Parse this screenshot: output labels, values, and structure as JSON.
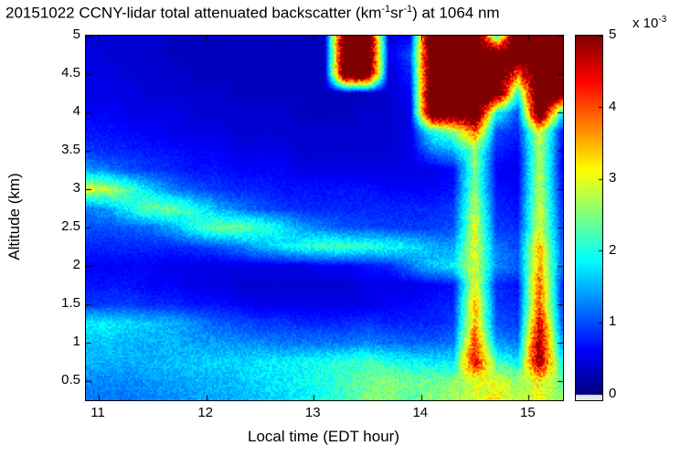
{
  "title": {
    "part1": "20151022 CCNY-lidar total attenuated backscatter (km",
    "sup1": "-1",
    "part2": "sr",
    "sup2": "-1",
    "part3": ") at 1064 nm"
  },
  "colorbar": {
    "scale_base": "x 10",
    "scale_exp": "-3",
    "tick_labels": [
      "0",
      "1",
      "2",
      "3",
      "4",
      "5"
    ],
    "tick_values": [
      0,
      1,
      2,
      3,
      4,
      5
    ]
  },
  "axes": {
    "xlabel": "Local time (EDT hour)",
    "ylabel": "Altitude (km)",
    "x_tick_labels": [
      "11",
      "12",
      "13",
      "14",
      "15"
    ],
    "x_tick_values": [
      11,
      12,
      13,
      14,
      15
    ],
    "y_tick_labels": [
      "0.5",
      "1",
      "1.5",
      "2",
      "2.5",
      "3",
      "3.5",
      "4",
      "4.5",
      "5"
    ],
    "y_tick_values": [
      0.5,
      1,
      1.5,
      2,
      2.5,
      3,
      3.5,
      4,
      4.5,
      5
    ],
    "x_range": [
      10.88,
      15.32
    ],
    "y_range": [
      0.25,
      5.0
    ]
  },
  "colors": {
    "background": "#ffffff",
    "axis": "#000000",
    "colormap_min": "#00008f",
    "colormap_max": "#7f0000",
    "below_range": "#e4e4f2"
  },
  "chart_data": {
    "type": "heatmap",
    "title": "20151022 CCNY-lidar total attenuated backscatter (km^-1 sr^-1) at 1064 nm",
    "xlabel": "Local time (EDT hour)",
    "ylabel": "Altitude (km)",
    "colormap": "jet",
    "clim": [
      0,
      5
    ],
    "value_scale": "1e-3",
    "units": "km^-1 sr^-1",
    "x_times": [
      10.9,
      11.1,
      11.3,
      11.5,
      11.7,
      11.9,
      12.1,
      12.3,
      12.5,
      12.7,
      12.9,
      13.1,
      13.3,
      13.5,
      13.7,
      13.9,
      14.1,
      14.3,
      14.5,
      14.7,
      14.9,
      15.1,
      15.3
    ],
    "altitudes": [
      0.25,
      0.5,
      0.75,
      1.0,
      1.25,
      1.5,
      1.75,
      2.0,
      2.25,
      2.5,
      2.75,
      3.0,
      3.25,
      3.5,
      3.75,
      4.0,
      4.25,
      4.5,
      4.75,
      5.0
    ],
    "values": [
      [
        1.2,
        1.2,
        1.2,
        1.3,
        1.3,
        1.4,
        1.5,
        1.5,
        1.6,
        1.7,
        1.8,
        2.0,
        2.2,
        2.5,
        2.5,
        2.3,
        2.5,
        2.6,
        2.8,
        3.2,
        2.8,
        3.0,
        2.6
      ],
      [
        1.3,
        1.3,
        1.3,
        1.4,
        1.4,
        1.5,
        1.5,
        1.6,
        1.7,
        1.8,
        1.9,
        2.0,
        2.2,
        2.4,
        2.6,
        2.4,
        2.4,
        2.5,
        3.0,
        3.0,
        2.6,
        3.2,
        2.4
      ],
      [
        1.5,
        1.5,
        1.5,
        1.5,
        1.6,
        1.6,
        1.7,
        1.7,
        1.8,
        1.8,
        1.9,
        2.0,
        2.1,
        2.2,
        2.0,
        1.9,
        1.8,
        1.8,
        4.5,
        2.2,
        1.8,
        5.0,
        2.0
      ],
      [
        1.6,
        1.6,
        1.5,
        1.5,
        1.5,
        1.4,
        1.4,
        1.3,
        1.3,
        1.2,
        1.2,
        1.2,
        1.2,
        1.3,
        1.2,
        1.1,
        1.1,
        1.2,
        4.0,
        1.4,
        1.2,
        5.0,
        1.5
      ],
      [
        1.8,
        1.8,
        1.7,
        1.6,
        1.5,
        1.3,
        1.1,
        1.0,
        0.9,
        0.9,
        0.8,
        0.8,
        0.8,
        0.9,
        0.8,
        0.8,
        0.8,
        0.9,
        3.5,
        1.0,
        0.9,
        4.5,
        1.2
      ],
      [
        0.9,
        0.9,
        0.9,
        0.8,
        0.8,
        0.7,
        0.7,
        0.6,
        0.5,
        0.5,
        0.5,
        0.5,
        0.5,
        0.5,
        0.6,
        0.6,
        0.7,
        0.8,
        3.5,
        0.9,
        0.8,
        4.0,
        1.0
      ],
      [
        0.7,
        0.7,
        0.7,
        0.6,
        0.6,
        0.5,
        0.5,
        0.4,
        0.4,
        0.4,
        0.4,
        0.4,
        0.4,
        0.5,
        0.5,
        0.5,
        0.6,
        0.7,
        3.0,
        0.8,
        0.7,
        4.0,
        0.9
      ],
      [
        0.6,
        0.6,
        0.6,
        0.6,
        0.5,
        0.5,
        0.5,
        0.5,
        0.5,
        0.5,
        0.5,
        0.6,
        0.6,
        0.7,
        0.8,
        1.2,
        1.6,
        1.8,
        3.0,
        1.3,
        1.1,
        3.5,
        1.2
      ],
      [
        0.8,
        0.8,
        0.8,
        0.8,
        0.8,
        0.9,
        1.0,
        1.2,
        1.5,
        1.8,
        2.0,
        2.2,
        2.2,
        2.1,
        2.0,
        1.8,
        1.5,
        1.4,
        3.0,
        1.2,
        1.0,
        3.5,
        1.1
      ],
      [
        1.0,
        1.0,
        1.1,
        1.2,
        1.5,
        2.0,
        2.4,
        2.4,
        2.2,
        1.8,
        1.4,
        1.2,
        1.0,
        1.0,
        0.9,
        0.9,
        0.9,
        1.0,
        3.0,
        0.9,
        0.8,
        3.0,
        1.0
      ],
      [
        1.2,
        1.5,
        2.0,
        2.4,
        2.4,
        2.0,
        1.5,
        1.2,
        1.0,
        0.9,
        0.8,
        0.8,
        0.8,
        0.8,
        0.8,
        0.8,
        0.8,
        0.9,
        2.8,
        0.8,
        0.7,
        3.0,
        0.9
      ],
      [
        3.0,
        2.8,
        2.2,
        1.6,
        1.2,
        1.0,
        0.9,
        0.8,
        0.8,
        0.7,
        0.7,
        0.7,
        0.7,
        0.7,
        0.6,
        0.6,
        0.6,
        0.7,
        2.5,
        0.7,
        0.6,
        2.8,
        0.8
      ],
      [
        1.4,
        1.2,
        1.0,
        0.9,
        0.8,
        0.7,
        0.7,
        0.6,
        0.6,
        0.6,
        0.5,
        0.5,
        0.5,
        0.5,
        0.5,
        0.5,
        0.5,
        0.6,
        2.5,
        0.6,
        0.5,
        2.8,
        0.7
      ],
      [
        0.9,
        0.8,
        0.8,
        0.7,
        0.7,
        0.6,
        0.6,
        0.5,
        0.5,
        0.5,
        0.4,
        0.4,
        0.4,
        0.4,
        0.4,
        0.5,
        1.2,
        1.5,
        2.5,
        0.8,
        0.6,
        2.8,
        0.7
      ],
      [
        0.7,
        0.7,
        0.6,
        0.6,
        0.5,
        0.5,
        0.5,
        0.4,
        0.4,
        0.4,
        0.4,
        0.4,
        0.4,
        0.4,
        0.4,
        0.5,
        2.0,
        2.5,
        4.0,
        1.0,
        0.8,
        3.0,
        0.8
      ],
      [
        0.6,
        0.6,
        0.5,
        0.5,
        0.5,
        0.4,
        0.4,
        0.4,
        0.4,
        0.4,
        0.3,
        0.3,
        0.3,
        0.4,
        0.4,
        0.5,
        6,
        6,
        6,
        2.0,
        1.0,
        6,
        2.0
      ],
      [
        0.5,
        0.5,
        0.5,
        0.4,
        0.4,
        0.4,
        0.4,
        0.3,
        0.3,
        0.3,
        0.3,
        0.3,
        0.3,
        0.3,
        0.4,
        0.6,
        6,
        6,
        6,
        6,
        2.0,
        6,
        6
      ],
      [
        0.5,
        0.5,
        0.4,
        0.4,
        0.4,
        0.3,
        0.3,
        0.3,
        0.3,
        0.3,
        0.3,
        0.3,
        6,
        6,
        0.4,
        0.8,
        6,
        6,
        6,
        6,
        4.0,
        6,
        6
      ],
      [
        0.5,
        0.4,
        0.4,
        0.4,
        0.3,
        0.3,
        0.3,
        0.3,
        0.3,
        0.3,
        0.3,
        0.3,
        6,
        6,
        0.5,
        1.0,
        6,
        6,
        6,
        6,
        6,
        6,
        6
      ],
      [
        0.4,
        0.4,
        0.4,
        0.4,
        0.3,
        0.3,
        0.3,
        0.3,
        0.3,
        0.3,
        0.3,
        0.3,
        6,
        6,
        0.4,
        0.6,
        6,
        6,
        6,
        2.0,
        6,
        6,
        6
      ]
    ]
  }
}
